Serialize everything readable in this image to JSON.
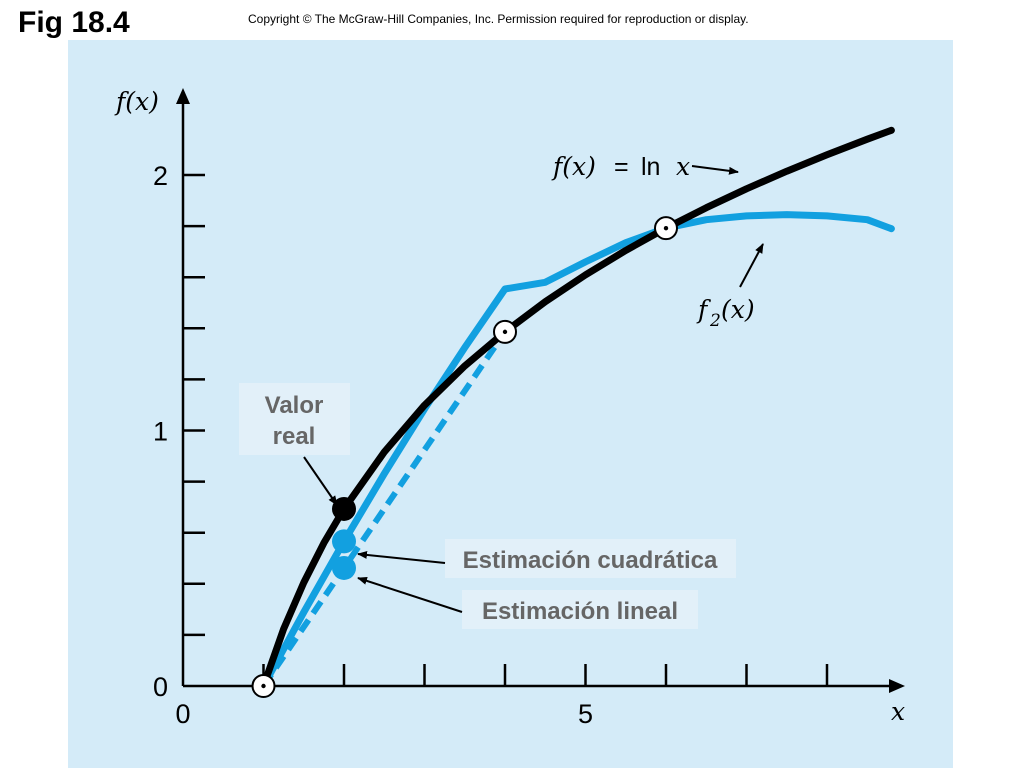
{
  "figure_label": "Fig 18.4",
  "copyright": "Copyright © The McGraw-Hill Companies, Inc. Permission required for reproduction or display.",
  "chart_data": {
    "type": "line",
    "xlabel": "x",
    "ylabel": "f(x)",
    "xlim": [
      0,
      8.9
    ],
    "ylim": [
      0,
      2.2
    ],
    "x_ticks": [
      1,
      2,
      3,
      4,
      5,
      6,
      7,
      8
    ],
    "x_tick_labels": [
      {
        "value": 0,
        "label": "0"
      },
      {
        "value": 5,
        "label": "5"
      }
    ],
    "y_ticks": [
      0.2,
      0.4,
      0.6,
      0.8,
      1.0,
      1.2,
      1.4,
      1.6,
      1.8,
      2.0
    ],
    "y_tick_labels": [
      {
        "value": 0,
        "label": "0"
      },
      {
        "value": 1,
        "label": "1"
      },
      {
        "value": 2,
        "label": "2"
      }
    ],
    "series": [
      {
        "name": "f(x) = ln x",
        "label_parts": {
          "lhs": "f(x)",
          "eq": "=",
          "fn": "ln",
          "var": "x"
        },
        "color": "#000000",
        "x": [
          1,
          1.25,
          1.5,
          1.75,
          2,
          2.5,
          3,
          3.5,
          4,
          4.5,
          5,
          5.5,
          6,
          6.5,
          7,
          7.5,
          8,
          8.5,
          8.8
        ],
        "y": [
          0,
          0.223,
          0.405,
          0.56,
          0.693,
          0.916,
          1.099,
          1.253,
          1.386,
          1.504,
          1.609,
          1.705,
          1.792,
          1.872,
          1.946,
          2.015,
          2.079,
          2.14,
          2.175
        ]
      },
      {
        "name": "f2(x)",
        "label_parts": {
          "fn": "f",
          "sub": "2",
          "arg": "(x)"
        },
        "color": "#12a0e0",
        "x": [
          1,
          1.5,
          2,
          2.5,
          3,
          3.5,
          4,
          4.5,
          5,
          5.5,
          6,
          6.5,
          7,
          7.5,
          8,
          8.5,
          8.8
        ],
        "y": [
          0,
          0.289,
          0.566,
          0.831,
          1.084,
          1.325,
          1.554,
          1.58,
          1.66,
          1.735,
          1.792,
          1.825,
          1.84,
          1.845,
          1.84,
          1.825,
          1.79
        ]
      },
      {
        "name": "linear",
        "color": "#12a0e0",
        "dashed": true,
        "x": [
          1,
          4
        ],
        "y": [
          0,
          1.386
        ]
      }
    ],
    "points": [
      {
        "name": "data-point",
        "x": 1,
        "y": 0,
        "style": "open"
      },
      {
        "name": "data-point",
        "x": 4,
        "y": 1.386,
        "style": "open"
      },
      {
        "name": "data-point",
        "x": 6,
        "y": 1.792,
        "style": "open"
      },
      {
        "name": "true-value",
        "x": 2,
        "y": 0.693,
        "style": "black"
      },
      {
        "name": "quadratic-estimate",
        "x": 2,
        "y": 0.566,
        "style": "blue"
      },
      {
        "name": "linear-estimate",
        "x": 2,
        "y": 0.462,
        "style": "blue"
      }
    ],
    "annotations": {
      "valor_real_line1": "Valor",
      "valor_real_line2": "real",
      "quadratic": "Estimación cuadrática",
      "linear": "Estimación lineal"
    }
  }
}
